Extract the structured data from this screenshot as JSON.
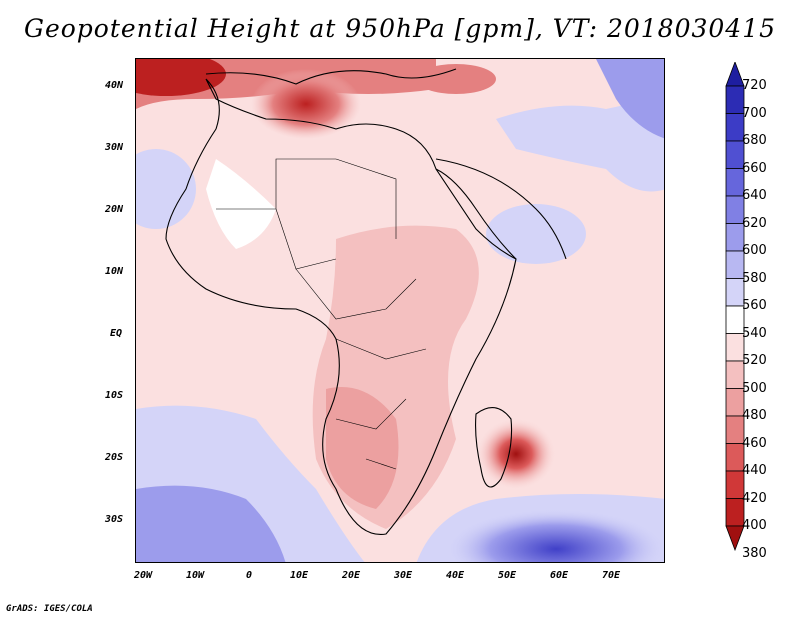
{
  "title": "Geopotential Height at 950hPa [gpm], VT: 2018030415",
  "credit": "GrADS: IGES/COLA",
  "lat_labels": [
    "40N",
    "30N",
    "20N",
    "10N",
    "EQ",
    "10S",
    "20S",
    "30S"
  ],
  "lon_labels": [
    "20W",
    "10W",
    "0",
    "10E",
    "20E",
    "30E",
    "40E",
    "50E",
    "60E",
    "70E"
  ],
  "colorbar": {
    "labels": [
      "720",
      "700",
      "680",
      "660",
      "640",
      "620",
      "600",
      "580",
      "560",
      "540",
      "520",
      "500",
      "480",
      "460",
      "440",
      "420",
      "400",
      "380"
    ],
    "colors": [
      "#1e1ea0",
      "#2c2cb4",
      "#3c3cc6",
      "#5050d2",
      "#6666dc",
      "#8080e4",
      "#9c9cec",
      "#b8b8f2",
      "#d4d4f8",
      "#ffffff",
      "#fbe0e0",
      "#f4c0c0",
      "#eca0a0",
      "#e48080",
      "#dc5a5a",
      "#d03838",
      "#bc2020",
      "#a01010"
    ]
  },
  "colors": {
    "blue_low": "#d4d4f8",
    "blue_mid": "#9c9cec",
    "red_low": "#fbe0e0",
    "red_mid": "#eca0a0",
    "red_high": "#bc2020"
  }
}
